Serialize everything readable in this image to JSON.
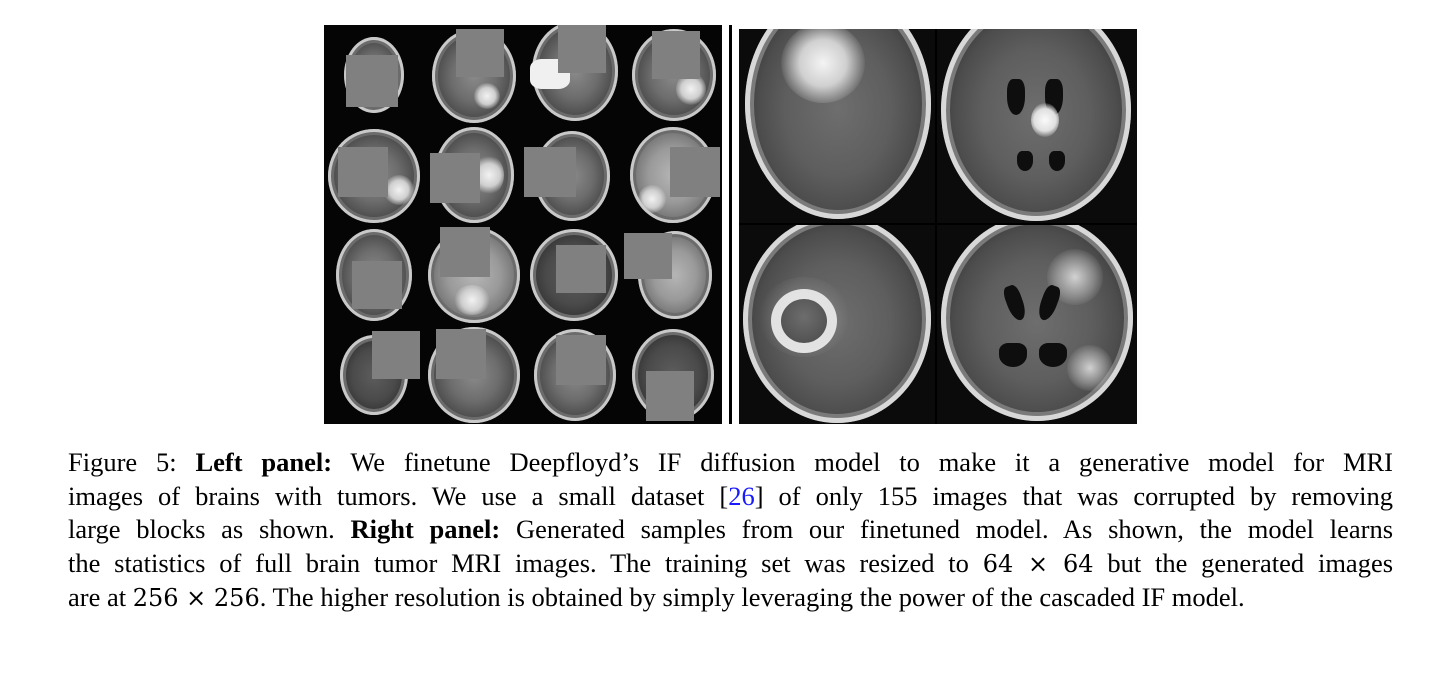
{
  "figure": {
    "panels": [
      {
        "name": "left",
        "kind": "grid of corrupted MRI brain scans, 4x4, grey masked blocks"
      },
      {
        "name": "right",
        "kind": "generated MRI brain samples, 2x2"
      }
    ]
  },
  "caption": {
    "label": "Figure 5:",
    "left_title": "Left panel:",
    "text_1": "We finetune Deepfloyd’s IF diffusion model to make it a generative model for MRI",
    "text_2a": "images of brains with tumors. We use a small dataset [",
    "citation": "26",
    "text_2b": "] of only 155 images that was corrupted by removing",
    "text_3a": "large blocks as shown.",
    "right_title": "Right panel:",
    "text_3b": "Generated samples from our finetuned model. As shown, the model learns",
    "text_4a": "the statistics of full brain tumor MRI images. The training set was resized to",
    "math_1": "64 × 64",
    "text_4b": "but the generated images",
    "text_5a": "are at",
    "math_2": "256 × 256",
    "text_5b": ". The higher resolution is obtained by simply leveraging the power of the cascaded IF model."
  }
}
